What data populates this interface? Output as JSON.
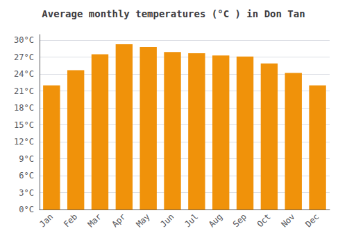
{
  "chart_data": {
    "type": "bar",
    "title": "Average monthly temperatures (°C ) in Don Tan",
    "categories": [
      "Jan",
      "Feb",
      "Mar",
      "Apr",
      "May",
      "Jun",
      "Jul",
      "Aug",
      "Sep",
      "Oct",
      "Nov",
      "Dec"
    ],
    "values": [
      22.0,
      24.7,
      27.5,
      29.3,
      28.8,
      27.9,
      27.7,
      27.3,
      27.1,
      25.9,
      24.2,
      22.0
    ],
    "color": "#F0920A",
    "ylim": [
      0,
      31
    ],
    "yticks": [
      {
        "value": 0,
        "label": "0°C"
      },
      {
        "value": 3,
        "label": "3°C"
      },
      {
        "value": 6,
        "label": "6°C"
      },
      {
        "value": 9,
        "label": "9°C"
      },
      {
        "value": 12,
        "label": "12°C"
      },
      {
        "value": 15,
        "label": "15°C"
      },
      {
        "value": 18,
        "label": "18°C"
      },
      {
        "value": 21,
        "label": "21°C"
      },
      {
        "value": 24,
        "label": "24°C"
      },
      {
        "value": 27,
        "label": "27°C"
      },
      {
        "value": 30,
        "label": "30°C"
      }
    ],
    "grid": true
  }
}
